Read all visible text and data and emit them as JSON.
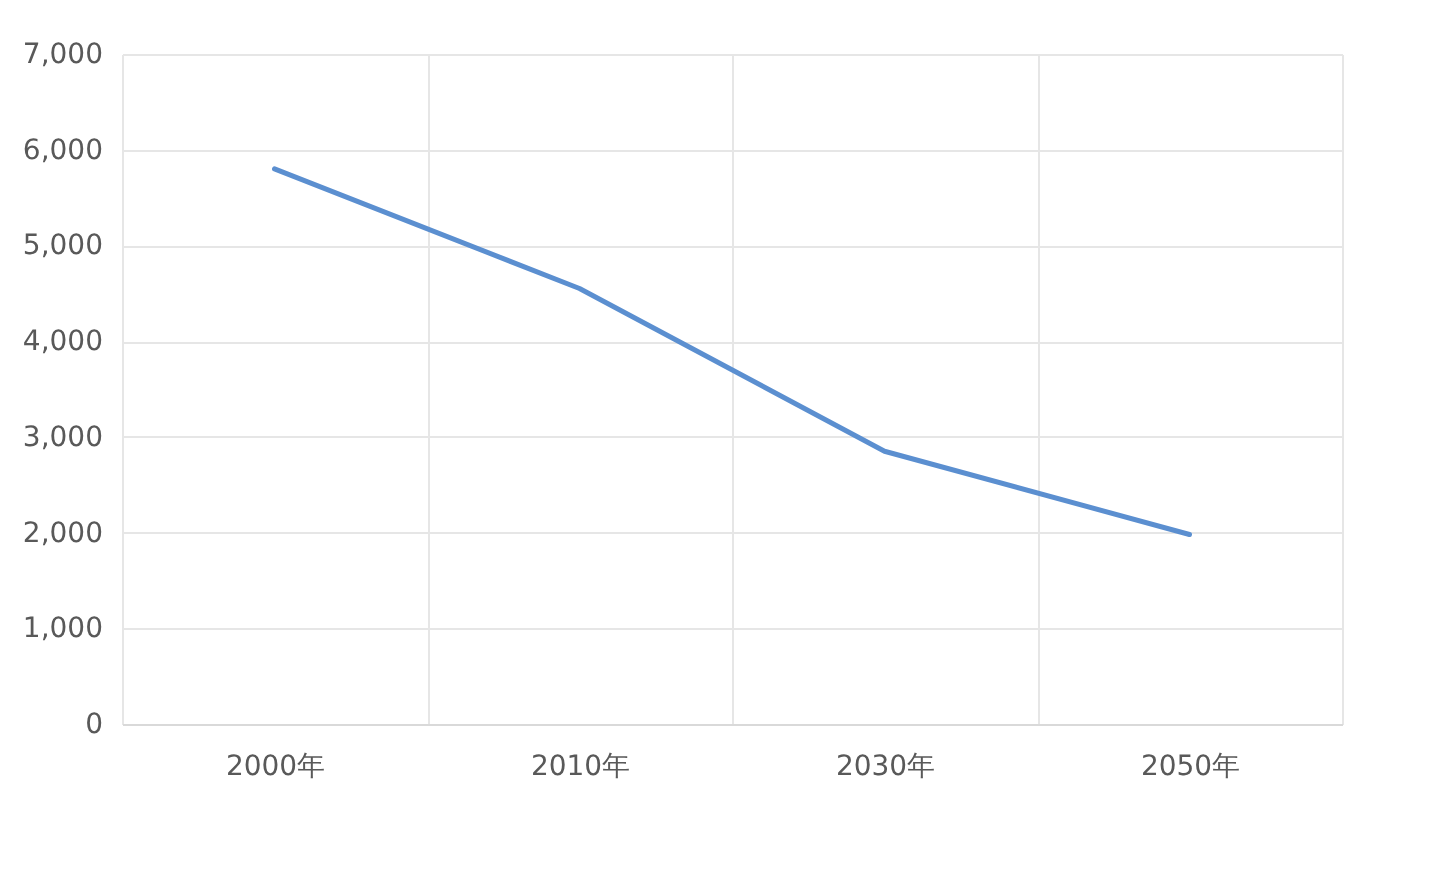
{
  "chart_data": {
    "type": "line",
    "categories": [
      "2000年",
      "2010年",
      "2030年",
      "2050年"
    ],
    "series": [
      {
        "color": "#5b8fd0",
        "values": [
          5800,
          4550,
          2850,
          1980
        ]
      }
    ],
    "ylim": [
      0,
      7000
    ],
    "yticks": [
      0,
      {
        "value": 1000,
        "label": "1,000"
      },
      {
        "value": 2000,
        "label": "2,000"
      },
      {
        "value": 3000,
        "label": "3,000"
      },
      {
        "value": 4000,
        "label": "4,000"
      },
      {
        "value": 5000,
        "label": "5,000"
      },
      {
        "value": 6000,
        "label": "6,000"
      },
      {
        "value": 7000,
        "label": "7,000"
      }
    ],
    "grid": true,
    "marker": "none",
    "line_style": "solid"
  }
}
